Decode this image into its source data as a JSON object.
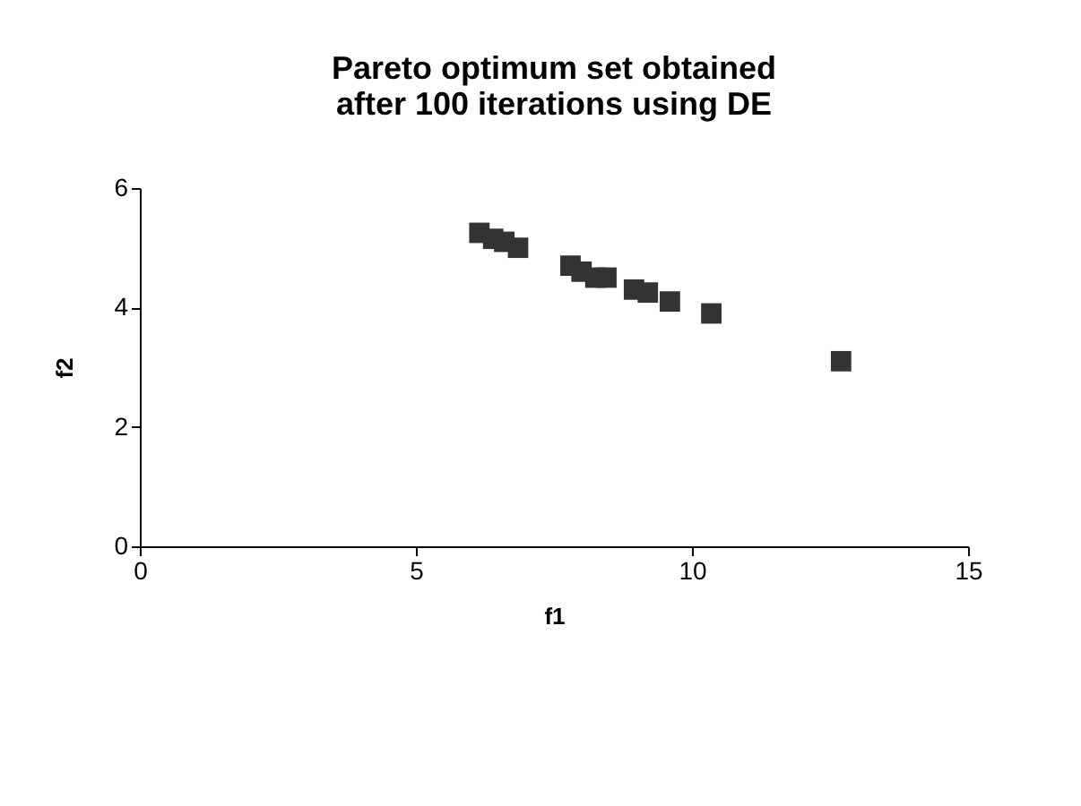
{
  "chart_data": {
    "type": "scatter",
    "title": "Pareto optimum set obtained after 100 iterations using DE",
    "xlabel": "f1",
    "ylabel": "f2",
    "x": [
      6.15,
      6.4,
      6.6,
      6.85,
      7.8,
      8.0,
      8.25,
      8.45,
      8.95,
      9.2,
      9.6,
      10.35,
      12.7
    ],
    "series": [
      {
        "color": "#333333",
        "values": [
          5.25,
          5.15,
          5.1,
          5.0,
          4.7,
          4.6,
          4.5,
          4.5,
          4.3,
          4.25,
          4.1,
          3.9,
          3.1
        ]
      }
    ],
    "xlim": [
      0,
      15
    ],
    "xticks": [
      0,
      5,
      10,
      15
    ],
    "ylim": [
      0,
      6
    ],
    "yticks": [
      0,
      2,
      4,
      6
    ],
    "marker": "square",
    "grid": false
  }
}
